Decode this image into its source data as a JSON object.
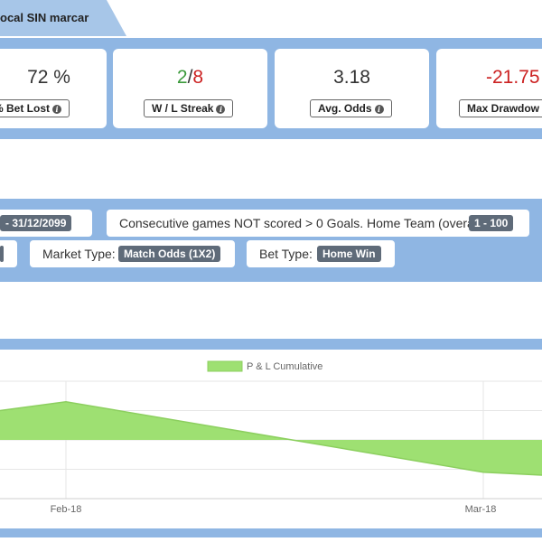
{
  "header": {
    "title": "ocal SIN marcar"
  },
  "stats": [
    {
      "value": "72 %",
      "label": "% Bet Lost"
    },
    {
      "value_win": "2",
      "value_sep": "/",
      "value_loss": "8",
      "label": "W / L Streak"
    },
    {
      "value": "3.18",
      "label": "Avg. Odds"
    },
    {
      "value": "-21.75",
      "label": "Max Drawdow"
    }
  ],
  "filters": {
    "date_range": "- 31/12/2099",
    "consecutive_label": "Consecutive games NOT scored > 0 Goals. Home Team (overall):",
    "consecutive_value": "1 - 100",
    "market_label": "Market Type:",
    "market_value": "Match Odds (1X2)",
    "bet_label": "Bet Type:",
    "bet_value": "Home Win"
  },
  "colors": {
    "panel": "#8fb6e3",
    "area": "#9ee072",
    "negative": "#cc2222",
    "positive": "#3c9a3c"
  },
  "chart_data": {
    "type": "area",
    "legend": [
      "P & L Cumulative"
    ],
    "x_tick_labels": [
      "Feb-18",
      "Mar-18"
    ],
    "series": [
      {
        "name": "P & L Cumulative",
        "points": [
          {
            "x": "Jan-18",
            "y": 1.0
          },
          {
            "x": "Feb-18",
            "y": 1.3
          },
          {
            "x": "Mar-18",
            "y": -1.1
          },
          {
            "x": "Mar-18+",
            "y": -1.2
          }
        ]
      }
    ],
    "ylim": [
      -2,
      2
    ],
    "grid": true,
    "legend_position": "top-center"
  }
}
